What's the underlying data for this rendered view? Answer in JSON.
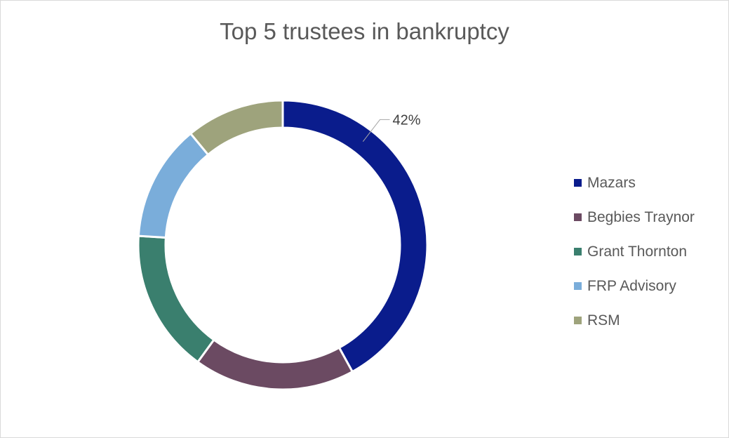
{
  "chart_data": {
    "type": "pie",
    "title": "Top 5 trustees in bankruptcy",
    "categories": [
      "Mazars",
      "Begbies Traynor",
      "Grant Thornton",
      "FRP Advisory",
      "RSM"
    ],
    "values": [
      42,
      18,
      16,
      13,
      11
    ],
    "colors": [
      "#0a1c8c",
      "#6b4a62",
      "#3a7f6e",
      "#7aadda",
      "#9ea37c"
    ],
    "data_labels": [
      {
        "category": "Mazars",
        "text": "42%"
      }
    ],
    "legend_position": "right",
    "style": "donut"
  }
}
